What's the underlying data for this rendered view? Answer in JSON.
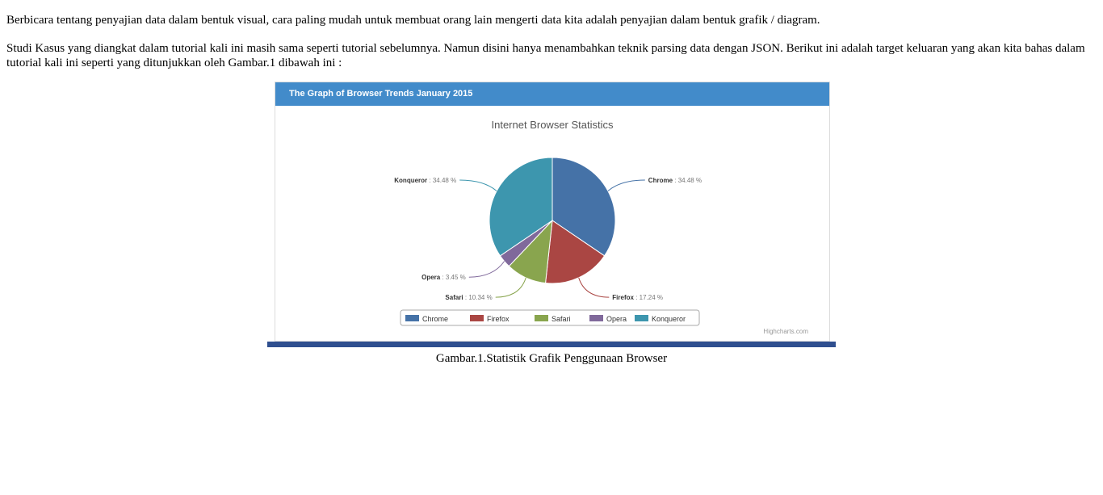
{
  "article": {
    "paragraph_1": "Berbicara tentang penyajian data dalam bentuk visual, cara paling mudah untuk membuat orang lain mengerti data kita adalah penyajian dalam bentuk grafik / diagram.",
    "paragraph_2": "Studi Kasus yang diangkat dalam tutorial kali ini masih sama seperti tutorial sebelumnya. Namun disini hanya menambahkan teknik parsing data dengan JSON. Berikut ini adalah target keluaran yang akan kita bahas dalam tutorial kali ini seperti yang ditunjukkan oleh Gambar.1 dibawah ini :",
    "caption": "Gambar.1.Statistik Grafik Penggunaan Browser"
  },
  "panel": {
    "heading": "The Graph of Browser Trends January 2015",
    "credits": "Highcharts.com"
  },
  "chart_data": {
    "type": "pie",
    "title": "Internet Browser Statistics",
    "legend_position": "bottom-center",
    "slices": [
      {
        "name": "Chrome",
        "value": 34.48,
        "label": "34.48 %",
        "color": "#4572a7"
      },
      {
        "name": "Firefox",
        "value": 17.24,
        "label": "17.24 %",
        "color": "#aa4643"
      },
      {
        "name": "Safari",
        "value": 10.34,
        "label": "10.34 %",
        "color": "#89a54e"
      },
      {
        "name": "Opera",
        "value": 3.45,
        "label": "3.45 %",
        "color": "#80699b"
      },
      {
        "name": "Konqueror",
        "value": 34.48,
        "label": "34.48 %",
        "color": "#3d96ae"
      }
    ]
  }
}
